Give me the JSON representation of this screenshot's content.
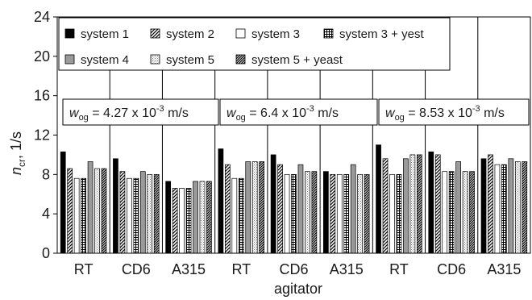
{
  "chart_data": {
    "type": "bar",
    "xlabel": "agitator",
    "ylabel": {
      "main": "n",
      "sub": "cr",
      "rest": ", 1/s"
    },
    "ylim": [
      0,
      24
    ],
    "yticks": [
      "0",
      "4",
      "8",
      "12",
      "16",
      "20",
      "24"
    ],
    "grid": "vertical separators between groups",
    "legend_position": "top-left (inside plot)",
    "categories": [
      "RT",
      "CD6",
      "A315",
      "RT",
      "CD6",
      "A315",
      "RT",
      "CD6",
      "A315"
    ],
    "series": [
      {
        "name": "system 1",
        "pattern": "solid-black",
        "values": [
          10.3,
          9.6,
          7.3,
          10.6,
          10.0,
          8.3,
          11.0,
          10.3,
          9.6
        ]
      },
      {
        "name": "system 2",
        "pattern": "diagonal-hatch",
        "values": [
          8.6,
          8.3,
          6.6,
          9.0,
          9.0,
          8.0,
          9.6,
          10.0,
          10.0
        ]
      },
      {
        "name": "system 3",
        "pattern": "white",
        "values": [
          7.6,
          7.6,
          6.6,
          7.6,
          8.0,
          8.0,
          8.0,
          8.3,
          9.0
        ]
      },
      {
        "name": "system 3 + yest",
        "pattern": "grid",
        "values": [
          7.6,
          7.6,
          6.6,
          7.6,
          8.0,
          8.0,
          8.0,
          8.3,
          9.0
        ]
      },
      {
        "name": "system 4",
        "pattern": "gray",
        "values": [
          9.3,
          8.3,
          7.3,
          9.3,
          9.0,
          9.0,
          9.6,
          9.3,
          9.6
        ]
      },
      {
        "name": "system 5",
        "pattern": "dotted",
        "values": [
          8.6,
          8.0,
          7.3,
          9.3,
          8.3,
          8.0,
          10.0,
          8.3,
          9.3
        ]
      },
      {
        "name": "system 5 + yeast",
        "pattern": "dense-diagonal",
        "values": [
          8.6,
          8.0,
          7.3,
          9.3,
          8.3,
          8.0,
          10.0,
          8.3,
          9.3
        ]
      }
    ],
    "annotations": [
      {
        "prefix": "w",
        "sub": "og",
        "eq": " = 4.27 x 10",
        "sup": "-3",
        "unit": " m/s"
      },
      {
        "prefix": "w",
        "sub": "og",
        "eq": " = 6.4 x 10",
        "sup": "-3",
        "unit": " m/s"
      },
      {
        "prefix": "w",
        "sub": "og",
        "eq": " = 8.53 x 10",
        "sup": "-3",
        "unit": " m/s"
      }
    ]
  }
}
